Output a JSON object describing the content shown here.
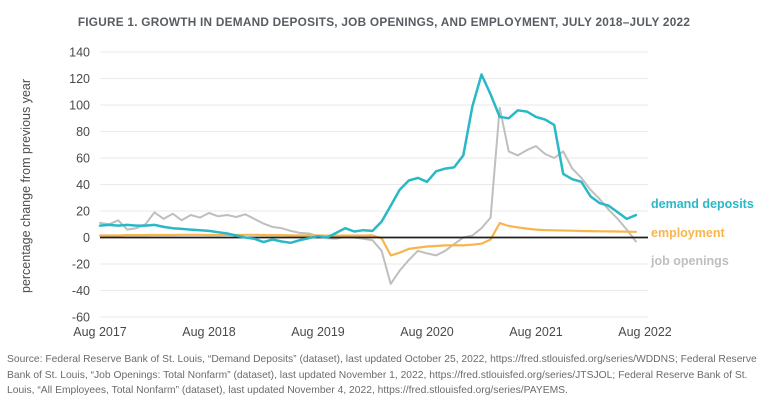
{
  "figure": {
    "title": "FIGURE 1. GROWTH IN DEMAND DEPOSITS, JOB OPENINGS, AND EMPLOYMENT, JULY 2018–JULY 2022"
  },
  "chart_data": {
    "type": "line",
    "title": "FIGURE 1. GROWTH IN DEMAND DEPOSITS, JOB OPENINGS, AND EMPLOYMENT, JULY 2018–JULY 2022",
    "xlabel": "",
    "ylabel": "percentage change from previous year",
    "x_start_month": "2017-08",
    "x_frequency": "monthly",
    "x_tick_labels": [
      "Aug 2017",
      "Aug 2018",
      "Aug 2019",
      "Aug 2020",
      "Aug 2021",
      "Aug 2022"
    ],
    "ylim": [
      -60,
      140
    ],
    "yticks": [
      140,
      120,
      100,
      80,
      60,
      40,
      20,
      0,
      -20,
      -40,
      -60
    ],
    "grid": true,
    "zero_line": true,
    "legend_position": "right",
    "series": [
      {
        "name": "demand deposits",
        "color": "#29b8c6",
        "values": [
          9,
          9.5,
          9,
          9.5,
          9,
          9,
          9.5,
          8,
          7,
          6.5,
          6,
          5.5,
          5,
          4,
          3,
          1.5,
          0,
          -1,
          -3.5,
          -1.5,
          -3,
          -4,
          -2,
          -0.5,
          1,
          0,
          3.5,
          7,
          4.5,
          5.5,
          5,
          12,
          24,
          36,
          43,
          45,
          42,
          50,
          52,
          53,
          62,
          99,
          123,
          108,
          91,
          90,
          96,
          95,
          91,
          89,
          85,
          48,
          44,
          42,
          31,
          26,
          24,
          19,
          14,
          17
        ]
      },
      {
        "name": "employment",
        "color": "#f7b54e",
        "values": [
          1.5,
          1.5,
          1.5,
          1.8,
          1.8,
          1.8,
          1.9,
          1.9,
          1.9,
          2,
          2,
          2,
          1.9,
          1.9,
          2,
          1.9,
          2,
          2,
          1.9,
          1.8,
          1.8,
          1.6,
          1.6,
          1.5,
          1.5,
          1.4,
          1.4,
          1.5,
          1.4,
          1.5,
          1.6,
          -0.5,
          -13.5,
          -11.5,
          -8.6,
          -7.6,
          -6.8,
          -6.4,
          -6,
          -5.8,
          -6,
          -5.4,
          -4.7,
          -1.5,
          10.9,
          8.7,
          7.6,
          6.7,
          6,
          5.6,
          5.4,
          5.3,
          5.1,
          4.9,
          4.8,
          4.7,
          4.6,
          4.5,
          4.4,
          4.3
        ]
      },
      {
        "name": "job openings",
        "color": "#bfbfbf",
        "values": [
          11,
          10,
          13,
          6,
          7,
          10,
          19,
          14,
          18,
          13,
          17,
          15,
          18.5,
          16,
          17,
          15.5,
          17.5,
          14,
          10.5,
          8,
          7,
          5,
          3.5,
          3,
          1,
          -0.5,
          -1,
          0.5,
          0,
          -1,
          -2,
          -10,
          -35,
          -25,
          -17,
          -10,
          -12,
          -13.5,
          -10,
          -5,
          0,
          1.5,
          7,
          15,
          98,
          65,
          62,
          66,
          69,
          63,
          60,
          65,
          52,
          45,
          36,
          29,
          21,
          14,
          6,
          -3
        ]
      }
    ]
  },
  "legend": {
    "items": [
      {
        "label": "demand deposits",
        "color": "#29b8c6"
      },
      {
        "label": "employment",
        "color": "#f7b54e"
      },
      {
        "label": "job openings",
        "color": "#bfbfbf"
      }
    ]
  },
  "colors": {
    "grid": "#eaeaea",
    "zero_line": "#1f1f1f",
    "axis_text": "#4a4a4a",
    "title_text": "#575d63",
    "source_text": "#6b6b6b"
  },
  "source": {
    "text": "Source: Federal Reserve Bank of St. Louis, “Demand Deposits” (dataset), last updated October 25, 2022, https://fred.stlouisfed.org/series/WDDNS; Federal Reserve Bank of St. Louis, “Job Openings: Total Nonfarm” (dataset), last updated November 1, 2022, https://fred.stlouisfed.org/series/JTSJOL; Federal Reserve Bank of St. Louis, “All Employees, Total Nonfarm” (dataset), last updated November 4, 2022, https://fred.stlouisfed.org/series/PAYEMS."
  }
}
